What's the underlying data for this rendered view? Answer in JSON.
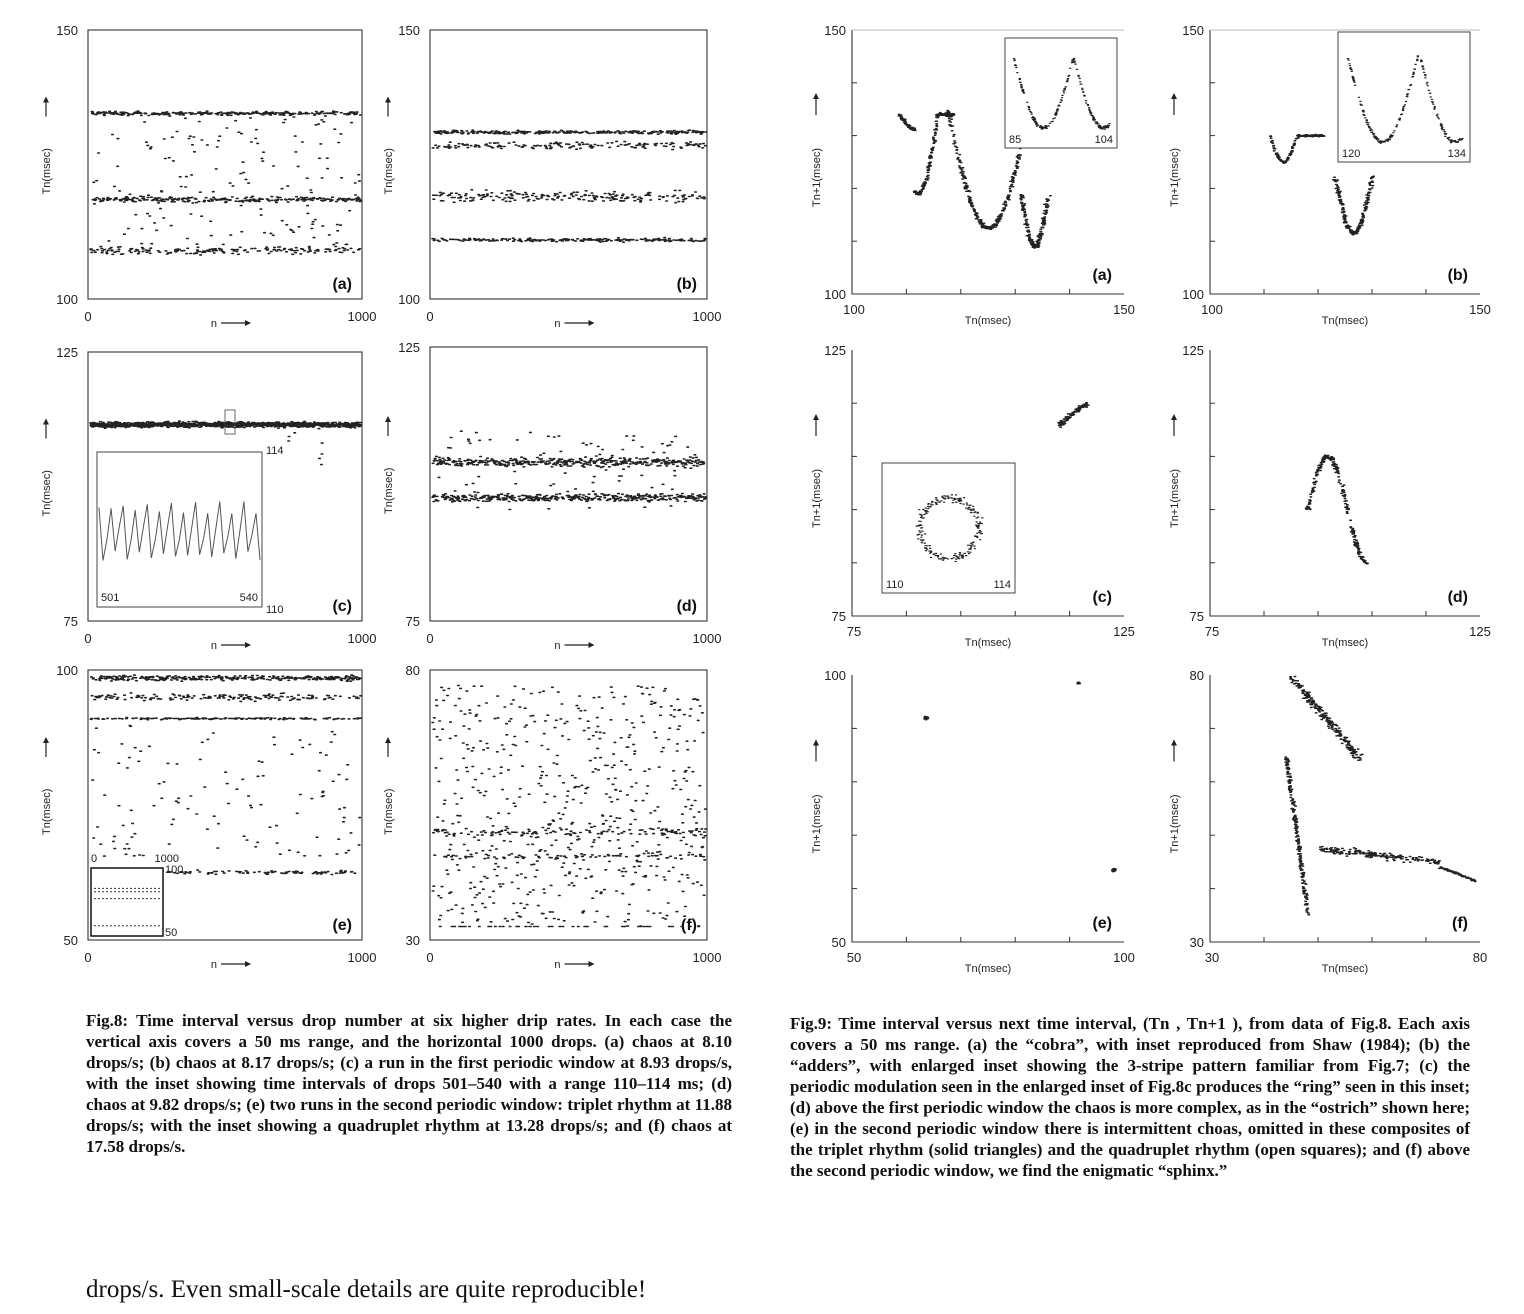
{
  "figure8": {
    "caption": "Fig.8: Time interval versus drop number at six higher drip rates. In each case the vertical axis covers a 50 ms range, and the horizontal 1000 drops. (a) chaos at 8.10 drops/s; (b) chaos at 8.17 drops/s; (c) a run in the first periodic window at 8.93 drops/s, with the inset showing time intervals of drops 501–540 with a range 110–114 ms; (d) chaos at 9.82 drops/s; (e) two runs in the second periodic window: triplet rhythm at 11.88 drops/s; with the inset showing a quadruplet rhythm at 13.28 drops/s; and (f) chaos at 17.58 drops/s.",
    "xlabel": "n",
    "ylabel": "Tn(msec)",
    "panels": [
      {
        "label": "(a)",
        "ymin": "100",
        "ymax": "150",
        "xmin": "0",
        "xmax": "1000"
      },
      {
        "label": "(b)",
        "ymin": "100",
        "ymax": "150",
        "xmin": "0",
        "xmax": "1000"
      },
      {
        "label": "(c)",
        "ymin": "75",
        "ymax": "125",
        "xmin": "0",
        "xmax": "1000",
        "inset": {
          "xmin": "501",
          "xmax": "540",
          "ymin": "110",
          "ymax": "114"
        }
      },
      {
        "label": "(d)",
        "ymin": "75",
        "ymax": "125",
        "xmin": "0",
        "xmax": "1000"
      },
      {
        "label": "(e)",
        "ymin": "50",
        "ymax": "100",
        "xmin": "0",
        "xmax": "1000",
        "inset": {
          "xmin": "0",
          "xmax": "1000",
          "ymin": "50",
          "ymax": "100"
        }
      },
      {
        "label": "(f)",
        "ymin": "30",
        "ymax": "80",
        "xmin": "0",
        "xmax": "1000"
      }
    ]
  },
  "figure9": {
    "caption": "Fig.9: Time interval versus next time interval, (Tn , Tn+1 ), from data of Fig.8. Each axis covers a 50 ms range. (a) the “cobra”, with inset reproduced from Shaw (1984); (b) the “adders”, with enlarged inset showing the 3-stripe pattern familiar from Fig.7; (c) the periodic modulation seen in the enlarged inset of Fig.8c produces the “ring” seen in this inset; (d) above the first periodic window the chaos is more complex, as in the “ostrich” shown here; (e) in the second periodic window there is intermittent choas, omitted in these composites of the triplet rhythm (solid triangles) and the quadruplet rhythm (open squares); and (f) above the second periodic window, we find the enigmatic “sphinx.”",
    "xlabel": "Tn(msec)",
    "ylabel": "Tn+1(msec)",
    "panels": [
      {
        "label": "(a)",
        "min": "100",
        "max": "150",
        "inset": {
          "xmin": "85",
          "xmax": "104"
        }
      },
      {
        "label": "(b)",
        "min": "100",
        "max": "150",
        "inset": {
          "xmin": "120",
          "xmax": "134"
        }
      },
      {
        "label": "(c)",
        "min": "75",
        "max": "125",
        "inset": {
          "xmin": "110",
          "xmax": "114"
        }
      },
      {
        "label": "(d)",
        "min": "75",
        "max": "125"
      },
      {
        "label": "(e)",
        "min": "50",
        "max": "100"
      },
      {
        "label": "(f)",
        "min": "30",
        "max": "80"
      }
    ]
  },
  "body_text": "drops/s. Even small-scale details are quite reproducible!"
}
